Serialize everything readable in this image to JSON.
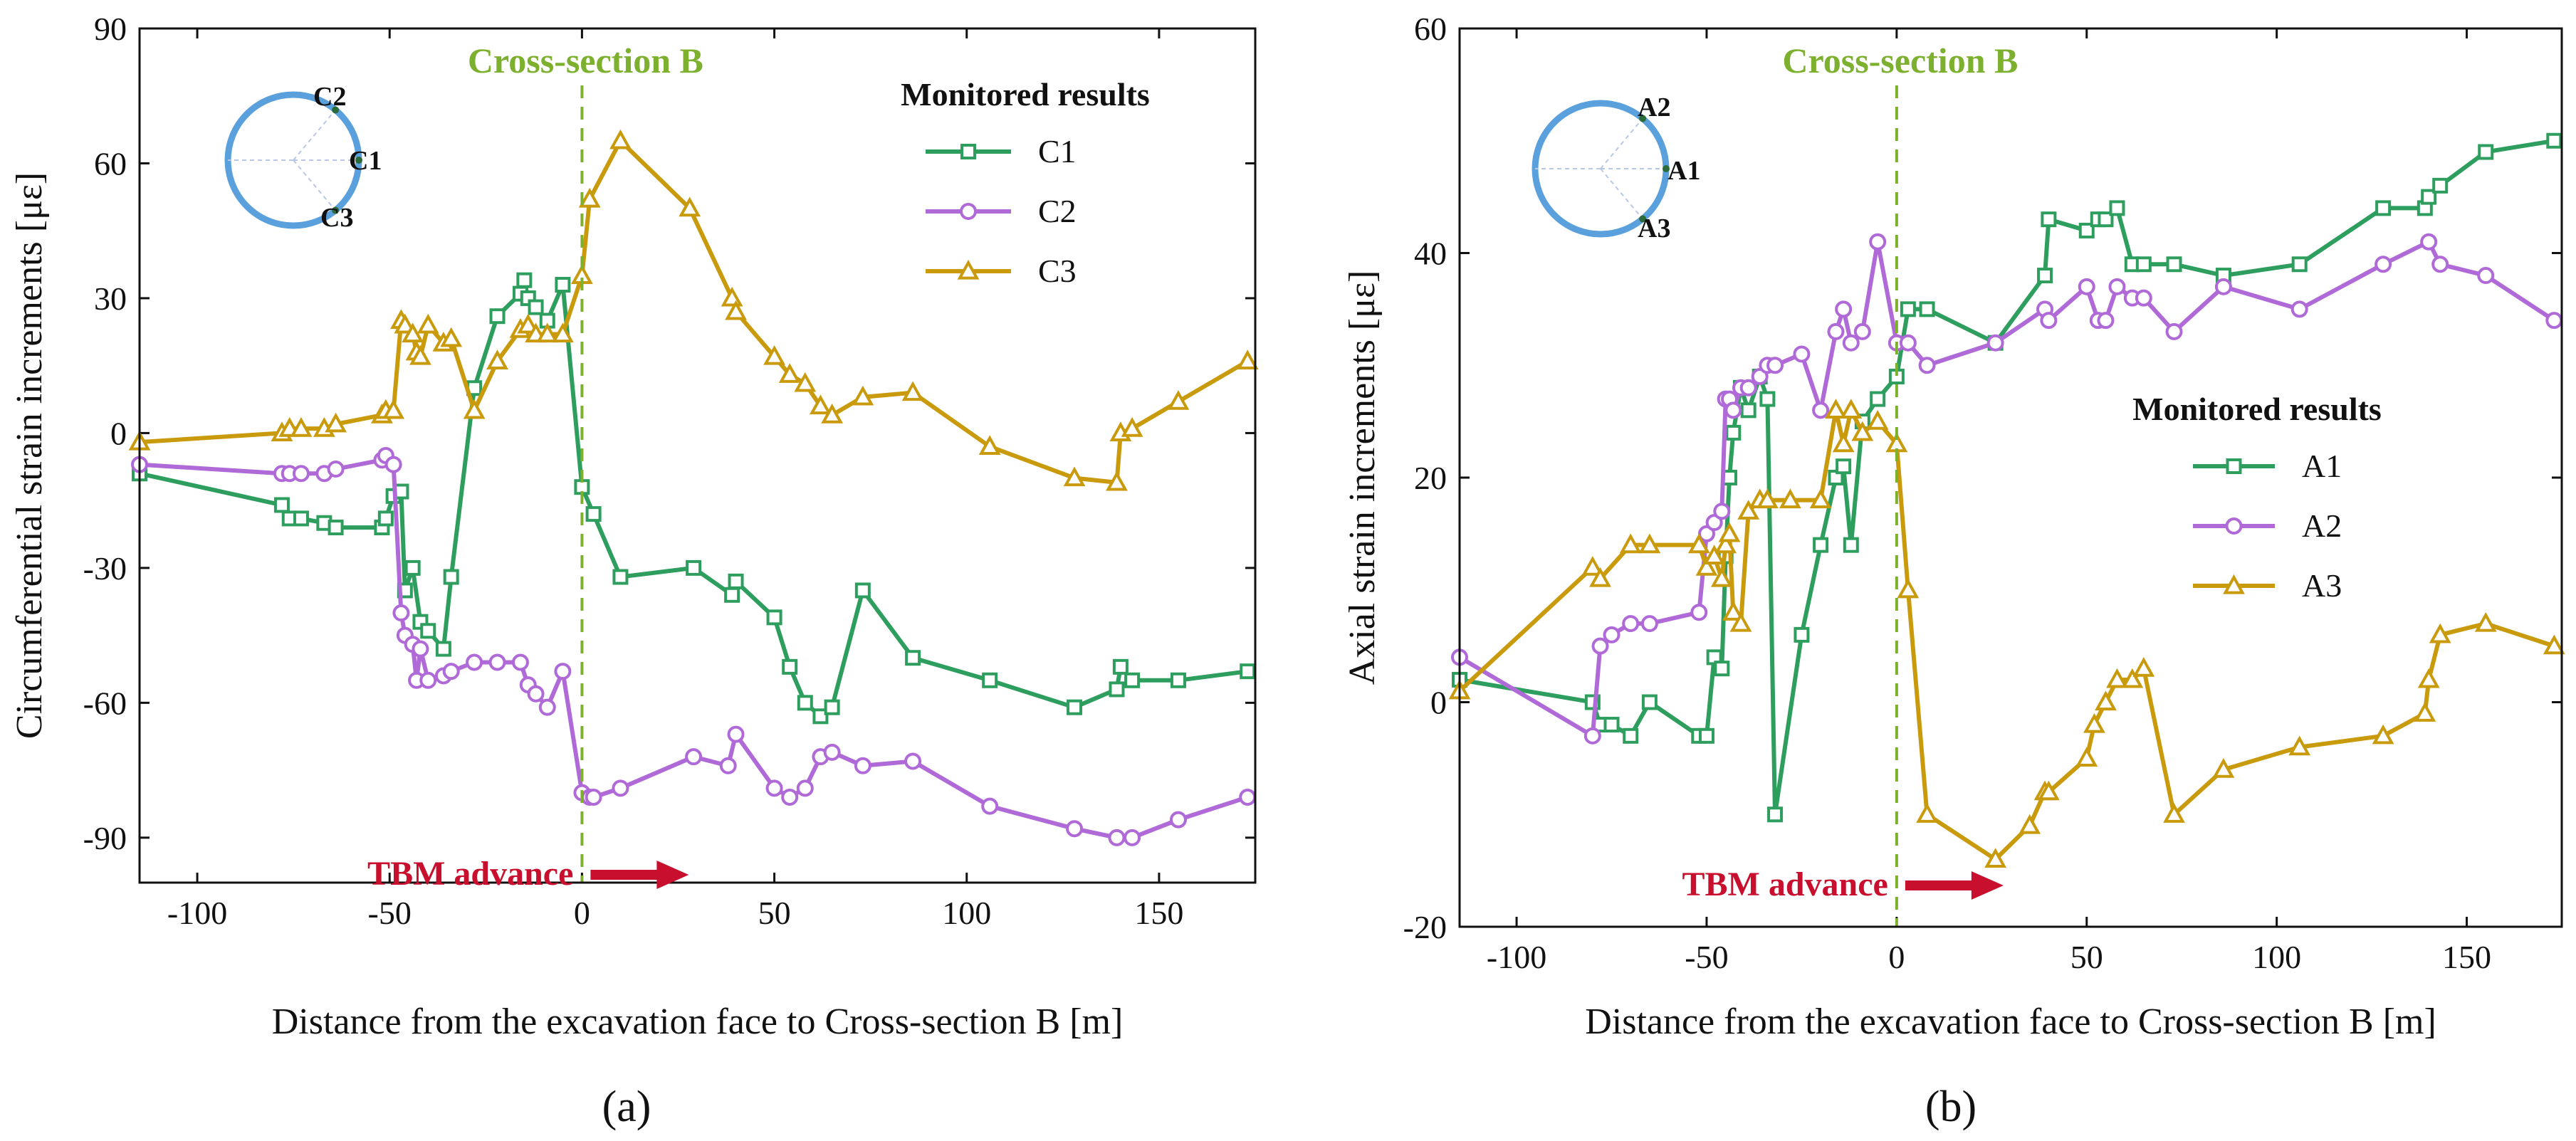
{
  "figure": {
    "colors": {
      "C1": "#2e9e5e",
      "C2": "#b06ad8",
      "C3": "#c89a0c",
      "xsection": "#7cb02e",
      "tbm": "#c8102e",
      "ring": "#5aa0dc"
    }
  },
  "chart_data": [
    {
      "type": "line",
      "panel_label": "(a)",
      "xlabel": "Distance from the excavation face to Cross-section B [m]",
      "ylabel": "Circumferential strain increments [με]",
      "xlim": [
        -115,
        175
      ],
      "ylim": [
        -100,
        90
      ],
      "xticks": [
        -100,
        -50,
        0,
        50,
        100,
        150
      ],
      "xtick_labels": [
        "-100",
        "-50",
        "0",
        "50",
        "100",
        "150"
      ],
      "yticks": [
        -90,
        -60,
        -30,
        0,
        30,
        60,
        90
      ],
      "ytick_labels": [
        "-90",
        "-60",
        "-30",
        "0",
        "30",
        "60",
        "90"
      ],
      "legend_title": "Monitored results",
      "annotations": {
        "cross_section": "Cross-section B",
        "tbm": "TBM advance",
        "gauges": [
          "C2",
          "C1",
          "C3"
        ]
      },
      "series": [
        {
          "name": "C1",
          "color": "#2e9e5e",
          "marker": "square",
          "x": [
            -115,
            -78,
            -76,
            -73,
            -67,
            -64,
            -52,
            -51,
            -49,
            -47,
            -46,
            -44,
            -42,
            -40,
            -36,
            -34,
            -28,
            -22,
            -16,
            -15,
            -14,
            -12,
            -9,
            -5,
            0,
            3,
            10,
            29,
            39,
            40,
            50,
            54,
            58,
            62,
            65,
            73,
            86,
            106,
            128,
            139,
            140,
            143,
            155,
            173
          ],
          "y": [
            -9,
            -16,
            -19,
            -19,
            -20,
            -21,
            -21,
            -19,
            -14,
            -13,
            -35,
            -30,
            -42,
            -44,
            -48,
            -32,
            10,
            26,
            31,
            34,
            30,
            28,
            25,
            33,
            -12,
            -18,
            -32,
            -30,
            -36,
            -33,
            -41,
            -52,
            -60,
            -63,
            -61,
            -35,
            -50,
            -55,
            -61,
            -57,
            -52,
            -55,
            -55,
            -53
          ]
        },
        {
          "name": "C2",
          "color": "#b06ad8",
          "marker": "circle",
          "x": [
            -115,
            -78,
            -76,
            -73,
            -67,
            -64,
            -52,
            -51,
            -49,
            -47,
            -46,
            -44,
            -43,
            -42,
            -40,
            -36,
            -34,
            -28,
            -22,
            -16,
            -14,
            -12,
            -9,
            -5,
            0,
            2,
            3,
            10,
            29,
            38,
            40,
            50,
            54,
            58,
            62,
            65,
            73,
            86,
            106,
            128,
            139,
            143,
            155,
            173
          ],
          "y": [
            -7,
            -9,
            -9,
            -9,
            -9,
            -8,
            -6,
            -5,
            -7,
            -40,
            -45,
            -47,
            -55,
            -48,
            -55,
            -54,
            -53,
            -51,
            -51,
            -51,
            -56,
            -58,
            -61,
            -53,
            -80,
            -81,
            -81,
            -79,
            -72,
            -74,
            -67,
            -79,
            -81,
            -79,
            -72,
            -71,
            -74,
            -73,
            -83,
            -88,
            -90,
            -90,
            -86,
            -81
          ]
        },
        {
          "name": "C3",
          "color": "#c89a0c",
          "marker": "triangle",
          "x": [
            -115,
            -78,
            -76,
            -73,
            -67,
            -64,
            -52,
            -51,
            -49,
            -47,
            -46,
            -44,
            -43,
            -42,
            -40,
            -36,
            -34,
            -28,
            -22,
            -16,
            -14,
            -12,
            -9,
            -5,
            0,
            2,
            10,
            28,
            39,
            40,
            50,
            54,
            58,
            62,
            65,
            73,
            86,
            106,
            128,
            139,
            140,
            143,
            155,
            173
          ],
          "y": [
            -2,
            0,
            1,
            1,
            1,
            2,
            4,
            5,
            5,
            25,
            24,
            22,
            18,
            17,
            24,
            20,
            21,
            5,
            16,
            23,
            24,
            22,
            22,
            22,
            35,
            52,
            65,
            50,
            30,
            27,
            17,
            13,
            11,
            6,
            4,
            8,
            9,
            -3,
            -10,
            -11,
            0,
            1,
            7,
            16
          ]
        }
      ]
    },
    {
      "type": "line",
      "panel_label": "(b)",
      "xlabel": "Distance from the excavation face to Cross-section B [m]",
      "ylabel": "Axial strain increments [με]",
      "xlim": [
        -115,
        175
      ],
      "ylim": [
        -20,
        60
      ],
      "xticks": [
        -100,
        -50,
        0,
        50,
        100,
        150
      ],
      "xtick_labels": [
        "-100",
        "-50",
        "0",
        "50",
        "100",
        "150"
      ],
      "yticks": [
        -20,
        0,
        20,
        40,
        60
      ],
      "ytick_labels": [
        "-20",
        "0",
        "20",
        "40",
        "60"
      ],
      "legend_title": "Monitored results",
      "annotations": {
        "cross_section": "Cross-section B",
        "tbm": "TBM advance",
        "gauges": [
          "A2",
          "A1",
          "A3"
        ]
      },
      "series": [
        {
          "name": "A1",
          "color": "#2e9e5e",
          "marker": "square",
          "x": [
            -115,
            -80,
            -78,
            -75,
            -70,
            -65,
            -52,
            -50,
            -48,
            -46,
            -45,
            -44,
            -43,
            -41,
            -39,
            -36,
            -34,
            -32,
            -25,
            -20,
            -16,
            -14,
            -12,
            -9,
            -5,
            0,
            3,
            8,
            26,
            39,
            40,
            50,
            53,
            55,
            58,
            62,
            65,
            73,
            86,
            106,
            128,
            139,
            140,
            143,
            155,
            173
          ],
          "y": [
            2,
            0,
            -2,
            -2,
            -3,
            0,
            -3,
            -3,
            4,
            3,
            13,
            20,
            24,
            28,
            26,
            29,
            27,
            -10,
            6,
            14,
            20,
            21,
            14,
            25,
            27,
            29,
            35,
            35,
            32,
            38,
            43,
            42,
            43,
            43,
            44,
            39,
            39,
            39,
            38,
            39,
            44,
            44,
            45,
            46,
            49,
            50
          ]
        },
        {
          "name": "A2",
          "color": "#b06ad8",
          "marker": "circle",
          "x": [
            -115,
            -80,
            -78,
            -75,
            -70,
            -65,
            -52,
            -50,
            -48,
            -46,
            -45,
            -44,
            -43,
            -41,
            -39,
            -36,
            -34,
            -32,
            -25,
            -20,
            -16,
            -14,
            -12,
            -9,
            -5,
            0,
            3,
            8,
            26,
            39,
            40,
            50,
            53,
            55,
            58,
            62,
            65,
            73,
            86,
            106,
            128,
            140,
            143,
            155,
            173
          ],
          "y": [
            4,
            -3,
            5,
            6,
            7,
            7,
            8,
            15,
            16,
            17,
            27,
            27,
            26,
            28,
            28,
            29,
            30,
            30,
            31,
            26,
            33,
            35,
            32,
            33,
            41,
            32,
            32,
            30,
            32,
            35,
            34,
            37,
            34,
            34,
            37,
            36,
            36,
            33,
            37,
            35,
            39,
            41,
            39,
            38,
            34
          ]
        },
        {
          "name": "A3",
          "color": "#c89a0c",
          "marker": "triangle",
          "x": [
            -115,
            -80,
            -78,
            -70,
            -65,
            -52,
            -50,
            -48,
            -46,
            -45,
            -44,
            -43,
            -41,
            -39,
            -36,
            -34,
            -28,
            -20,
            -16,
            -14,
            -12,
            -9,
            -5,
            0,
            3,
            8,
            26,
            35,
            39,
            40,
            50,
            52,
            55,
            58,
            62,
            65,
            73,
            86,
            106,
            128,
            139,
            140,
            143,
            155,
            173
          ],
          "y": [
            1,
            12,
            11,
            14,
            14,
            14,
            12,
            13,
            11,
            14,
            15,
            8,
            7,
            17,
            18,
            18,
            18,
            18,
            26,
            23,
            26,
            24,
            25,
            23,
            10,
            -10,
            -14,
            -11,
            -8,
            -8,
            -5,
            -2,
            0,
            2,
            2,
            3,
            -10,
            -6,
            -4,
            -3,
            -1,
            2,
            6,
            7,
            5
          ]
        }
      ]
    }
  ]
}
